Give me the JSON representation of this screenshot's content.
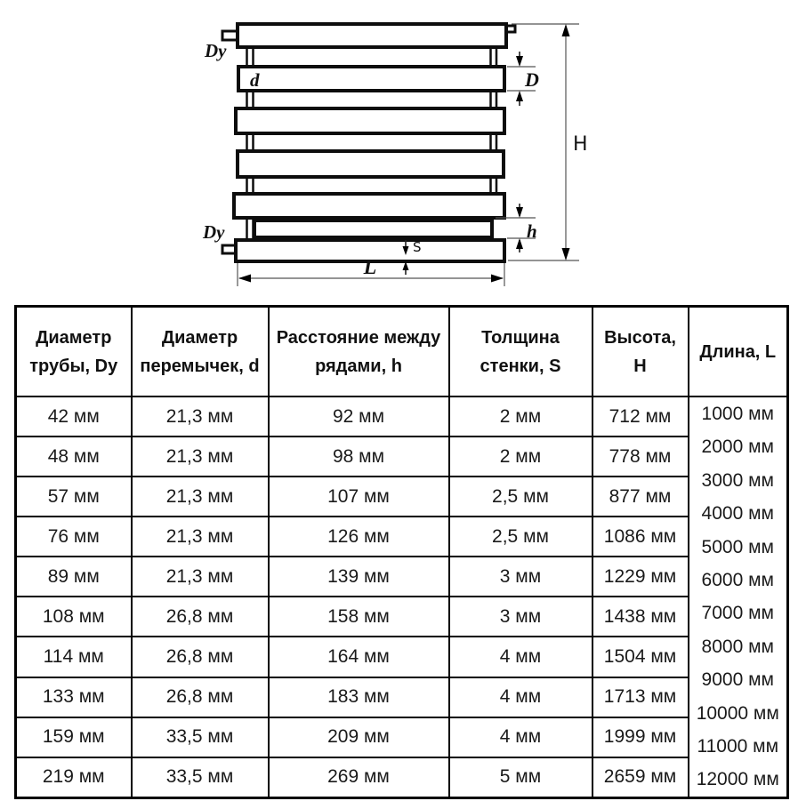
{
  "diagram": {
    "labels": {
      "dy_top": "Dy",
      "d": "d",
      "D": "D",
      "H": "H",
      "h": "h",
      "S": "S",
      "L": "L",
      "dy_bottom": "Dy"
    }
  },
  "table": {
    "headers": [
      "Диаметр трубы, Dy",
      "Диаметр перемычек, d",
      "Расстояние между рядами, h",
      "Толщина стенки, S",
      "Высота, H",
      "Длина, L"
    ],
    "rows": [
      [
        "42 мм",
        "21,3 мм",
        "92 мм",
        "2 мм",
        "712 мм"
      ],
      [
        "48 мм",
        "21,3 мм",
        "98 мм",
        "2 мм",
        "778 мм"
      ],
      [
        "57 мм",
        "21,3 мм",
        "107 мм",
        "2,5 мм",
        "877 мм"
      ],
      [
        "76 мм",
        "21,3 мм",
        "126 мм",
        "2,5 мм",
        "1086 мм"
      ],
      [
        "89 мм",
        "21,3 мм",
        "139 мм",
        "3 мм",
        "1229 мм"
      ],
      [
        "108 мм",
        "26,8 мм",
        "158 мм",
        "3 мм",
        "1438 мм"
      ],
      [
        "114 мм",
        "26,8 мм",
        "164 мм",
        "4 мм",
        "1504 мм"
      ],
      [
        "133 мм",
        "26,8 мм",
        "183 мм",
        "4 мм",
        "1713 мм"
      ],
      [
        "159 мм",
        "33,5 мм",
        "209 мм",
        "4 мм",
        "1999 мм"
      ],
      [
        "219 мм",
        "33,5 мм",
        "269 мм",
        "5 мм",
        "2659 мм"
      ]
    ],
    "lengths": [
      "1000 мм",
      "2000 мм",
      "3000 мм",
      "4000 мм",
      "5000 мм",
      "6000 мм",
      "7000 мм",
      "8000 мм",
      "9000 мм",
      "10000 мм",
      "11000 мм",
      "12000 мм"
    ]
  }
}
